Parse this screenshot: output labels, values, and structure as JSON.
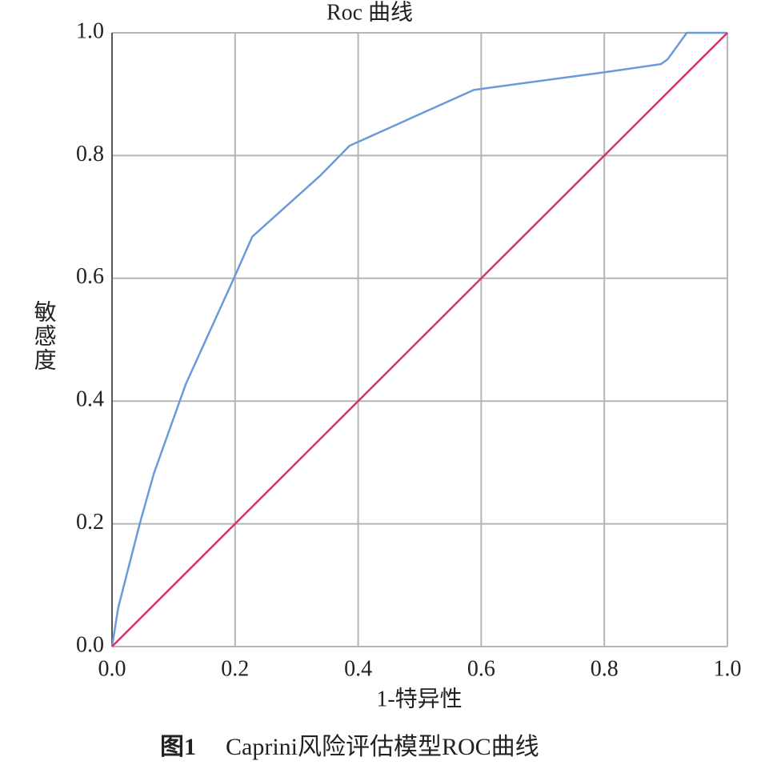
{
  "chart_data": {
    "type": "line",
    "title": "Roc 曲线",
    "xlabel": "1-特异性",
    "ylabel": "敏感度",
    "xlim": [
      0,
      1
    ],
    "ylim": [
      0,
      1
    ],
    "xticks": [
      {
        "value": 0,
        "label": "0.0"
      },
      0.2,
      0.4,
      0.6,
      0.8,
      {
        "value": 1,
        "label": "1.0"
      }
    ],
    "yticks": [
      {
        "value": 0,
        "label": "0.0"
      },
      0.2,
      0.4,
      0.6,
      0.8,
      {
        "value": 1,
        "label": "1.0"
      }
    ],
    "grid": true,
    "series": [
      {
        "color": "#6a9bd8",
        "x": [
          0,
          0.01,
          0.045,
          0.068,
          0.12,
          0.198,
          0.228,
          0.338,
          0.386,
          0.588,
          0.802,
          0.892,
          0.903,
          0.934,
          1
        ],
        "values": [
          0,
          0.063,
          0.2,
          0.282,
          0.428,
          0.6,
          0.668,
          0.767,
          0.816,
          0.907,
          0.936,
          0.949,
          0.957,
          1,
          1
        ]
      },
      {
        "color": "#d6336c",
        "x": [
          0,
          1
        ],
        "values": [
          0,
          1
        ]
      }
    ]
  },
  "figure_label": "图1",
  "caption": "Caprini风险评估模型ROC曲线"
}
